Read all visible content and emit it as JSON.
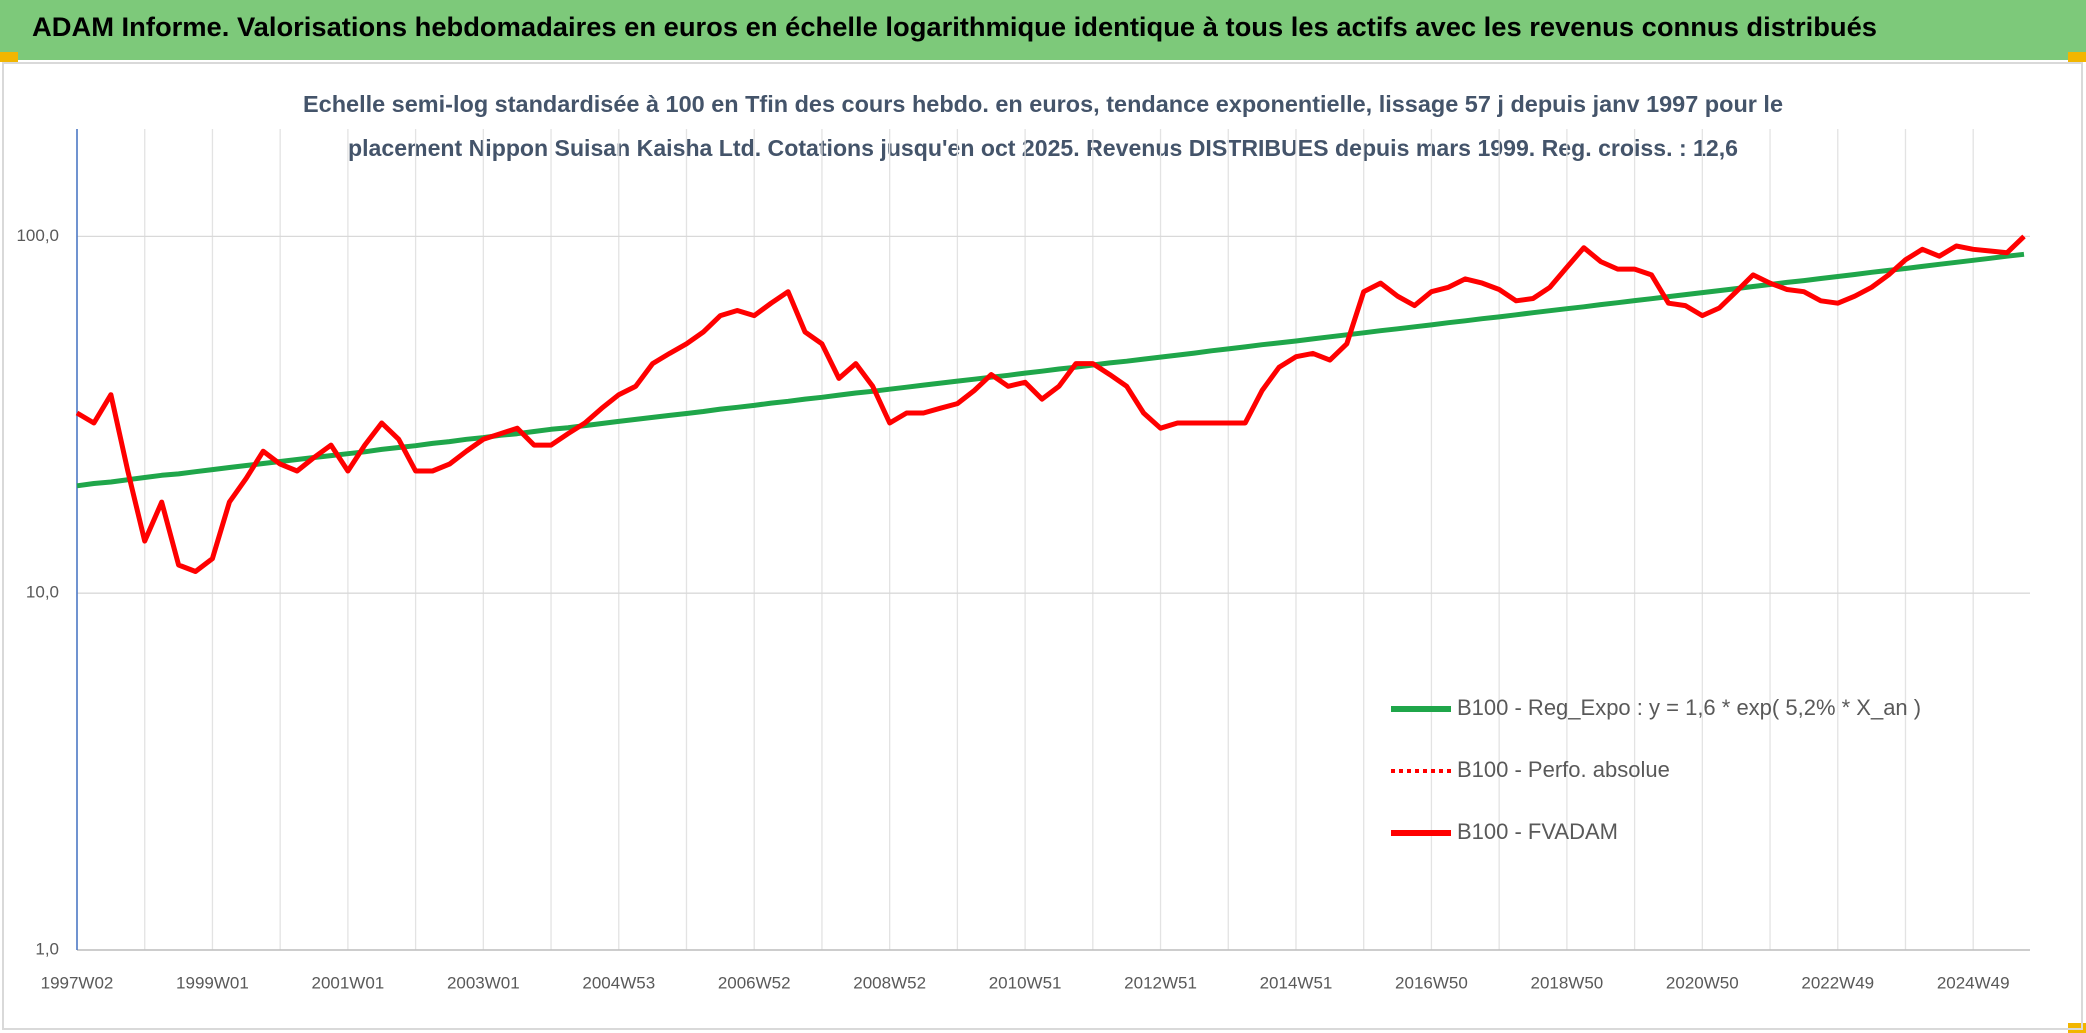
{
  "chart_data": {
    "type": "line",
    "title": "ADAM Informe. Valorisations hebdomadaires en euros en échelle logarithmique identique à tous les actifs avec les revenus connus distribués",
    "subtitle": [
      "Echelle semi-log standardisée à 100 en Tfin des cours hebdo. en euros, tendance exponentielle, lissage 57 j depuis janv 1997 pour le",
      "placement Nippon Suisan Kaisha Ltd. Cotations jusqu'en oct 2025. Revenus DISTRIBUES depuis mars 1999. Reg. croiss. : 12,6"
    ],
    "log_y": true,
    "grid": true,
    "categories": [
      "1997W02",
      null,
      null,
      null,
      null,
      null,
      null,
      null,
      "1999W01",
      null,
      null,
      null,
      null,
      null,
      null,
      null,
      "2001W01",
      null,
      null,
      null,
      null,
      null,
      null,
      null,
      "2003W01",
      null,
      null,
      null,
      null,
      null,
      null,
      null,
      "2004W53",
      null,
      null,
      null,
      null,
      null,
      null,
      null,
      "2006W52",
      null,
      null,
      null,
      null,
      null,
      null,
      null,
      "2008W52",
      null,
      null,
      null,
      null,
      null,
      null,
      null,
      "2010W51",
      null,
      null,
      null,
      null,
      null,
      null,
      null,
      "2012W51",
      null,
      null,
      null,
      null,
      null,
      null,
      null,
      "2014W51",
      null,
      null,
      null,
      null,
      null,
      null,
      null,
      "2016W50",
      null,
      null,
      null,
      null,
      null,
      null,
      null,
      "2018W50",
      null,
      null,
      null,
      null,
      null,
      null,
      null,
      "2020W50",
      null,
      null,
      null,
      null,
      null,
      null,
      null,
      "2022W49",
      null,
      null,
      null,
      null,
      null,
      null,
      null,
      "2024W49",
      null,
      null,
      null
    ],
    "ylim": [
      1,
      200
    ],
    "yticks": [
      {
        "value": 1,
        "label": "1,0"
      },
      {
        "value": 10,
        "label": "10,0"
      },
      {
        "value": 100,
        "label": "100,0"
      }
    ],
    "series": [
      {
        "name": "B100 - Reg_Expo : y = 1,6 * exp( 5,2% *  X_an )",
        "color": "#1fa64a",
        "style": "solid",
        "values": [
          20.0,
          20.3,
          20.5,
          20.8,
          21.1,
          21.4,
          21.6,
          21.9,
          22.2,
          22.5,
          22.8,
          23.1,
          23.4,
          23.7,
          24.0,
          24.3,
          24.6,
          24.9,
          25.3,
          25.6,
          25.9,
          26.3,
          26.6,
          27.0,
          27.3,
          27.7,
          28.0,
          28.4,
          28.8,
          29.1,
          29.5,
          29.9,
          30.3,
          30.7,
          31.1,
          31.5,
          31.9,
          32.3,
          32.8,
          33.2,
          33.6,
          34.1,
          34.5,
          35.0,
          35.4,
          35.9,
          36.4,
          36.8,
          37.3,
          37.8,
          38.3,
          38.8,
          39.3,
          39.8,
          40.3,
          40.8,
          41.4,
          41.9,
          42.5,
          43.0,
          43.6,
          44.2,
          44.7,
          45.3,
          45.9,
          46.5,
          47.1,
          47.8,
          48.4,
          49.0,
          49.7,
          50.3,
          50.9,
          51.6,
          52.3,
          53.0,
          53.7,
          54.4,
          55.1,
          55.8,
          56.5,
          57.3,
          58.0,
          58.8,
          59.5,
          60.3,
          61.1,
          61.9,
          62.7,
          63.5,
          64.4,
          65.2,
          66.1,
          66.9,
          67.8,
          68.7,
          69.6,
          70.5,
          71.4,
          72.4,
          73.3,
          74.3,
          75.2,
          76.2,
          77.2,
          78.2,
          79.3,
          80.3,
          81.3,
          82.4,
          83.5,
          84.6,
          85.7,
          86.8,
          88.0,
          89.1
        ]
      },
      {
        "name": "B100 - Perfo. absolue",
        "color": "#ff0000",
        "style": "dotted",
        "values": [
          32,
          30,
          36,
          22,
          14,
          18,
          12,
          11.5,
          12.5,
          18,
          21,
          25,
          23,
          22,
          24,
          26,
          22,
          26,
          30,
          27,
          22,
          22,
          23,
          25,
          27,
          28,
          29,
          26,
          26,
          28,
          30,
          33,
          36,
          38,
          44,
          47,
          50,
          54,
          60,
          62,
          60,
          65,
          70,
          54,
          50,
          40,
          44,
          38,
          30,
          32,
          32,
          33,
          34,
          37,
          41,
          38,
          39,
          35,
          38,
          44,
          44,
          41,
          38,
          32,
          29,
          30,
          30,
          30,
          30,
          30,
          37,
          43,
          46,
          47,
          45,
          50,
          70,
          74,
          68,
          64,
          70,
          72,
          76,
          74,
          71,
          66,
          67,
          72,
          82,
          93,
          85,
          81,
          81,
          78,
          65,
          64,
          60,
          63,
          70,
          78,
          74,
          71,
          70,
          66,
          65,
          68,
          72,
          78,
          86,
          92,
          88,
          94,
          92,
          91,
          90,
          100
        ]
      },
      {
        "name": "B100 - FVADAM",
        "color": "#ff0000",
        "style": "solid",
        "values": [
          32,
          30,
          36,
          22,
          14,
          18,
          12,
          11.5,
          12.5,
          18,
          21,
          25,
          23,
          22,
          24,
          26,
          22,
          26,
          30,
          27,
          22,
          22,
          23,
          25,
          27,
          28,
          29,
          26,
          26,
          28,
          30,
          33,
          36,
          38,
          44,
          47,
          50,
          54,
          60,
          62,
          60,
          65,
          70,
          54,
          50,
          40,
          44,
          38,
          30,
          32,
          32,
          33,
          34,
          37,
          41,
          38,
          39,
          35,
          38,
          44,
          44,
          41,
          38,
          32,
          29,
          30,
          30,
          30,
          30,
          30,
          37,
          43,
          46,
          47,
          45,
          50,
          70,
          74,
          68,
          64,
          70,
          72,
          76,
          74,
          71,
          66,
          67,
          72,
          82,
          93,
          85,
          81,
          81,
          78,
          65,
          64,
          60,
          63,
          70,
          78,
          74,
          71,
          70,
          66,
          65,
          68,
          72,
          78,
          86,
          92,
          88,
          94,
          92,
          91,
          90,
          100
        ]
      }
    ]
  }
}
